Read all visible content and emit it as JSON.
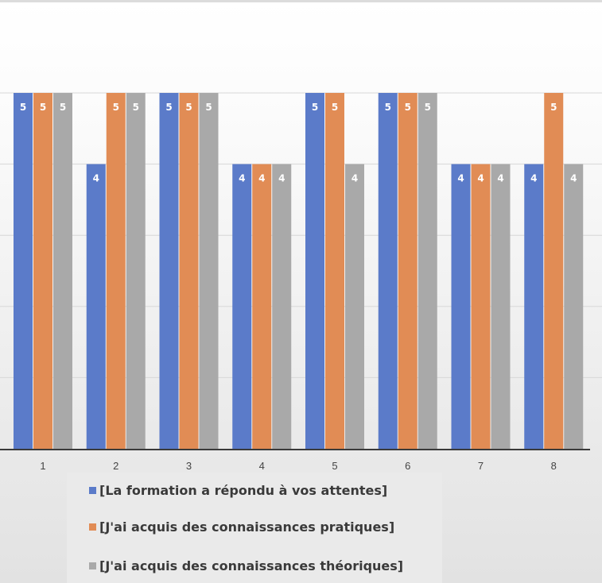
{
  "chart_data": {
    "type": "bar",
    "categories": [
      "1",
      "2",
      "3",
      "4",
      "5",
      "6",
      "7",
      "8"
    ],
    "series": [
      {
        "name": "[La formation a répondu à vos attentes]",
        "color": "#5b7bc9",
        "values": [
          5,
          4,
          5,
          4,
          5,
          5,
          4,
          4
        ]
      },
      {
        "name": "[J'ai acquis des connaissances pratiques]",
        "color": "#e18c55",
        "values": [
          5,
          5,
          5,
          4,
          5,
          5,
          4,
          5
        ]
      },
      {
        "name": "[J'ai acquis des connaissances théoriques]",
        "color": "#a9a9a9",
        "values": [
          5,
          5,
          5,
          4,
          4,
          5,
          4,
          4
        ]
      }
    ],
    "ylim": [
      0,
      5
    ],
    "gridlines": [
      1,
      2,
      3,
      4,
      5
    ],
    "grid": true,
    "data_labels": true,
    "legend_position": "bottom"
  }
}
